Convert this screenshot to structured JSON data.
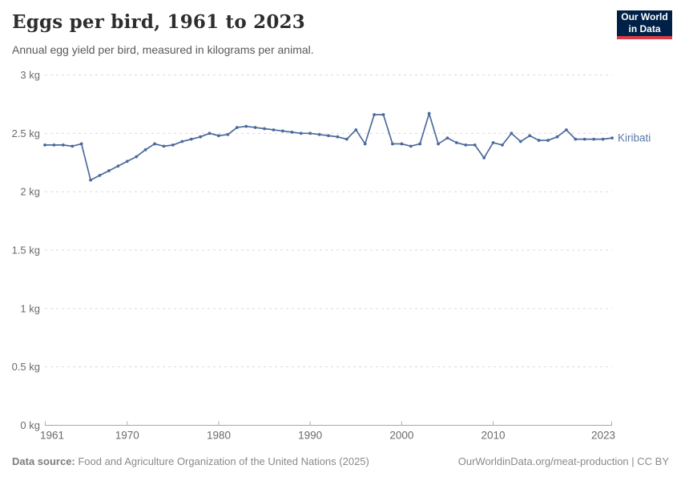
{
  "header": {
    "title": "Eggs per bird, 1961 to 2023",
    "subtitle": "Annual egg yield per bird, measured in kilograms per animal."
  },
  "logo": {
    "line1": "Our World",
    "line2": "in Data",
    "bg_color": "#002147",
    "accent_color": "#dc3b45"
  },
  "chart_data": {
    "type": "line",
    "title": "Eggs per bird, 1961 to 2023",
    "xlabel": "",
    "ylabel": "",
    "unit": "kg",
    "xlim": [
      1961,
      2023
    ],
    "ylim": [
      0,
      3
    ],
    "grid": "horizontal-dashed",
    "legend_position": "end-of-line-label",
    "x_ticks": [
      1961,
      1970,
      1980,
      1990,
      2000,
      2010,
      2023
    ],
    "y_ticks": [
      0,
      0.5,
      1,
      1.5,
      2,
      2.5,
      3
    ],
    "y_tick_labels": [
      "0 kg",
      "0.5 kg",
      "1 kg",
      "1.5 kg",
      "2 kg",
      "2.5 kg",
      "3 kg"
    ],
    "series": [
      {
        "name": "Kiribati",
        "color": "#4c6a9c",
        "label_color": "#5b79a8",
        "x": [
          1961,
          1962,
          1963,
          1964,
          1965,
          1966,
          1967,
          1968,
          1969,
          1970,
          1971,
          1972,
          1973,
          1974,
          1975,
          1976,
          1977,
          1978,
          1979,
          1980,
          1981,
          1982,
          1983,
          1984,
          1985,
          1986,
          1987,
          1988,
          1989,
          1990,
          1991,
          1992,
          1993,
          1994,
          1995,
          1996,
          1997,
          1998,
          1999,
          2000,
          2001,
          2002,
          2003,
          2004,
          2005,
          2006,
          2007,
          2008,
          2009,
          2010,
          2011,
          2012,
          2013,
          2014,
          2015,
          2016,
          2017,
          2018,
          2019,
          2020,
          2021,
          2022,
          2023
        ],
        "values": [
          2.4,
          2.4,
          2.4,
          2.39,
          2.41,
          2.1,
          2.14,
          2.18,
          2.22,
          2.26,
          2.3,
          2.36,
          2.41,
          2.39,
          2.4,
          2.43,
          2.45,
          2.47,
          2.5,
          2.48,
          2.49,
          2.55,
          2.56,
          2.55,
          2.54,
          2.53,
          2.52,
          2.51,
          2.5,
          2.5,
          2.49,
          2.48,
          2.47,
          2.45,
          2.53,
          2.41,
          2.66,
          2.66,
          2.41,
          2.41,
          2.39,
          2.41,
          2.67,
          2.41,
          2.46,
          2.42,
          2.4,
          2.4,
          2.29,
          2.42,
          2.4,
          2.5,
          2.43,
          2.48,
          2.44,
          2.44,
          2.47,
          2.53,
          2.45,
          2.45,
          2.45,
          2.45,
          2.46
        ]
      }
    ]
  },
  "footer": {
    "source_label": "Data source:",
    "source_text": " Food and Agriculture Organization of the United Nations (2025)",
    "attribution": "OurWorldinData.org/meat-production | CC BY"
  }
}
